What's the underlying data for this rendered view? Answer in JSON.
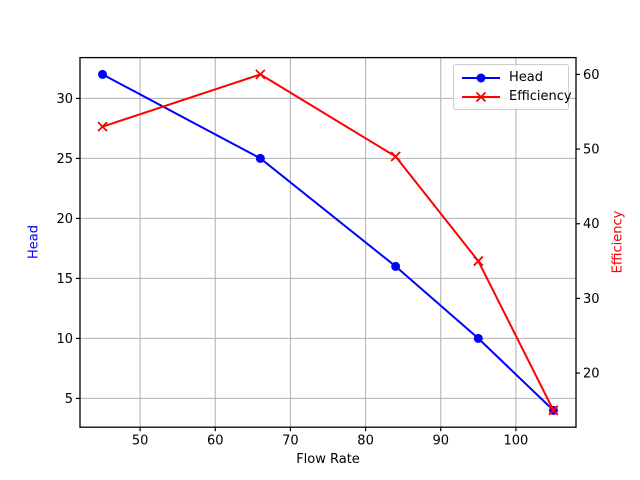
{
  "figure": {
    "background": "#ffffff"
  },
  "chart_data": {
    "type": "line",
    "title": "",
    "xlabel": "Flow Rate",
    "ylabel_left": "Head",
    "ylabel_right": "Efficiency",
    "x": [
      45,
      66,
      84,
      95,
      105
    ],
    "series": [
      {
        "name": "Head",
        "axis": "left",
        "color": "#0000ff",
        "marker": "circle",
        "values": [
          32,
          25,
          16,
          10,
          4
        ]
      },
      {
        "name": "Efficiency",
        "axis": "right",
        "color": "#ff0000",
        "marker": "x",
        "values": [
          53,
          60,
          49,
          35,
          15
        ]
      }
    ],
    "x_ticks": [
      50,
      60,
      70,
      80,
      90,
      100
    ],
    "y_ticks_left": [
      5,
      10,
      15,
      20,
      25,
      30
    ],
    "y_ticks_right": [
      20,
      30,
      40,
      50,
      60
    ],
    "xlim": [
      42,
      108
    ],
    "ylim_left": [
      2.6,
      33.4
    ],
    "ylim_right": [
      12.75,
      62.25
    ],
    "grid": true,
    "legend": {
      "position": "upper-right",
      "entries": [
        "Head",
        "Efficiency"
      ]
    },
    "colors": {
      "grid": "#b0b0b0",
      "spine": "#000000",
      "tick_label": "#000000",
      "left_label": "#0000ff",
      "right_label": "#ff0000",
      "legend_border": "#cccccc"
    }
  }
}
